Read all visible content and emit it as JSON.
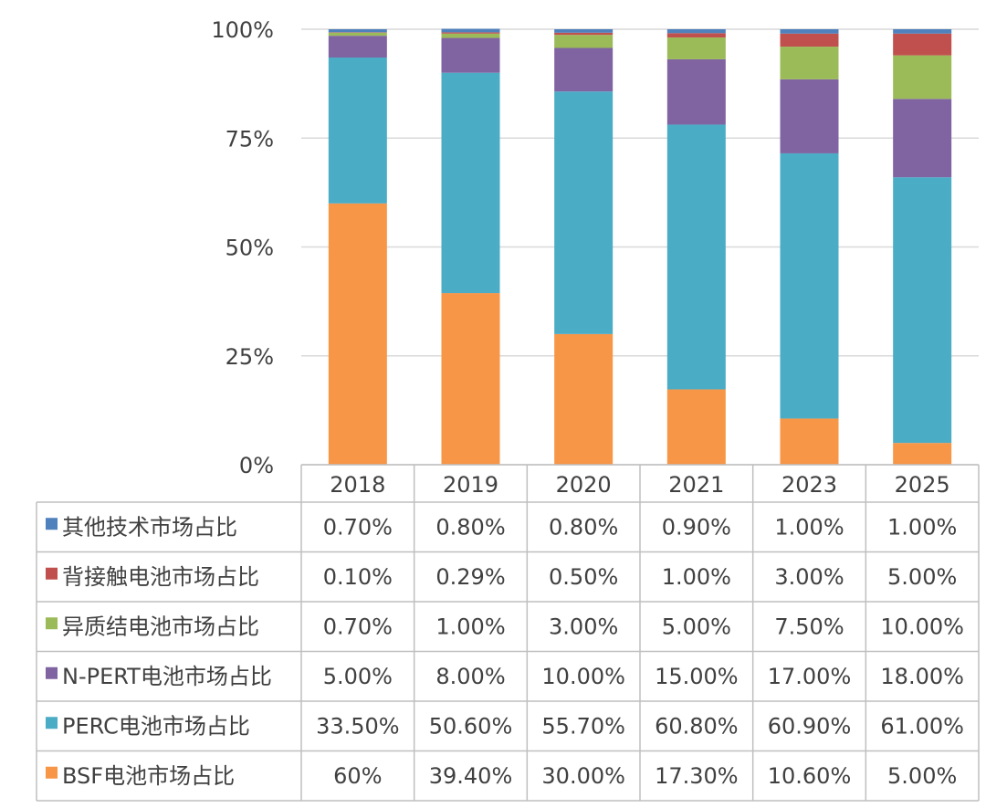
{
  "chart_data": {
    "type": "bar",
    "stacked": true,
    "normalized": true,
    "categories": [
      "2018",
      "2019",
      "2020",
      "2021",
      "2023",
      "2025"
    ],
    "ylim": [
      0,
      100
    ],
    "yticks": [
      "0%",
      "25%",
      "50%",
      "75%",
      "100%"
    ],
    "grid": true,
    "legend_placement": "in data table (left column)",
    "series": [
      {
        "name": "BSF电池市场占比",
        "color": "#F79646",
        "values": [
          60,
          39.4,
          30,
          17.3,
          10.6,
          5
        ],
        "labels": [
          "60%",
          "39.40%",
          "30.00%",
          "17.30%",
          "10.60%",
          "5.00%"
        ]
      },
      {
        "name": "PERC电池市场占比",
        "color": "#4BACC6",
        "values": [
          33.5,
          50.6,
          55.7,
          60.8,
          60.9,
          61
        ],
        "labels": [
          "33.50%",
          "50.60%",
          "55.70%",
          "60.80%",
          "60.90%",
          "61.00%"
        ]
      },
      {
        "name": "N-PERT电池市场占比",
        "color": "#8064A2",
        "values": [
          5,
          8,
          10,
          15,
          17,
          18
        ],
        "labels": [
          "5.00%",
          "8.00%",
          "10.00%",
          "15.00%",
          "17.00%",
          "18.00%"
        ]
      },
      {
        "name": "异质结电池市场占比",
        "color": "#9BBB59",
        "values": [
          0.7,
          1,
          3,
          5,
          7.5,
          10
        ],
        "labels": [
          "0.70%",
          "1.00%",
          "3.00%",
          "5.00%",
          "7.50%",
          "10.00%"
        ]
      },
      {
        "name": "背接触电池市场占比",
        "color": "#C0504D",
        "values": [
          0.1,
          0.29,
          0.5,
          1,
          3,
          5
        ],
        "labels": [
          "0.10%",
          "0.29%",
          "0.50%",
          "1.00%",
          "3.00%",
          "5.00%"
        ]
      },
      {
        "name": "其他技术市场占比",
        "color": "#4F81BD",
        "values": [
          0.7,
          0.8,
          0.8,
          0.9,
          1,
          1
        ],
        "labels": [
          "0.70%",
          "0.80%",
          "0.80%",
          "0.90%",
          "1.00%",
          "1.00%"
        ]
      }
    ],
    "table_row_order": [
      5,
      4,
      3,
      2,
      1,
      0
    ]
  }
}
